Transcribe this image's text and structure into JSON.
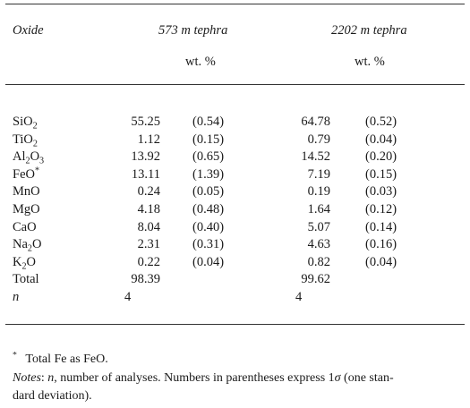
{
  "header": {
    "col_oxide": "Oxide",
    "col_a_title": "573 m tephra",
    "col_b_title": "2202 m tephra",
    "units_a": "wt. %",
    "units_b": "wt. %"
  },
  "rows": [
    {
      "oxide": "SiO",
      "sub": "2",
      "sup": "",
      "a": "55.25",
      "a_sd": "(0.54)",
      "b": "64.78",
      "b_sd": "(0.52)"
    },
    {
      "oxide": "TiO",
      "sub": "2",
      "sup": "",
      "a": "1.12",
      "a_sd": "(0.15)",
      "b": "0.79",
      "b_sd": "(0.04)"
    },
    {
      "oxide": "Al",
      "sub": "2",
      "oxide2": "O",
      "sub2": "3",
      "sup": "",
      "a": "13.92",
      "a_sd": "(0.65)",
      "b": "14.52",
      "b_sd": "(0.20)"
    },
    {
      "oxide": "FeO",
      "sub": "",
      "sup": "*",
      "a": "13.11",
      "a_sd": "(1.39)",
      "b": "7.19",
      "b_sd": "(0.15)"
    },
    {
      "oxide": "MnO",
      "sub": "",
      "sup": "",
      "a": "0.24",
      "a_sd": "(0.05)",
      "b": "0.19",
      "b_sd": "(0.03)"
    },
    {
      "oxide": "MgO",
      "sub": "",
      "sup": "",
      "a": "4.18",
      "a_sd": "(0.48)",
      "b": "1.64",
      "b_sd": "(0.12)"
    },
    {
      "oxide": "CaO",
      "sub": "",
      "sup": "",
      "a": "8.04",
      "a_sd": "(0.40)",
      "b": "5.07",
      "b_sd": "(0.14)"
    },
    {
      "oxide": "Na",
      "sub": "2",
      "oxide2": "O",
      "sup": "",
      "a": "2.31",
      "a_sd": "(0.31)",
      "b": "4.63",
      "b_sd": "(0.16)"
    },
    {
      "oxide": "K",
      "sub": "2",
      "oxide2": "O",
      "sup": "",
      "a": "0.22",
      "a_sd": "(0.04)",
      "b": "0.82",
      "b_sd": "(0.04)"
    },
    {
      "oxide": "Total",
      "sub": "",
      "sup": "",
      "a": "98.39",
      "a_sd": "",
      "b": "99.62",
      "b_sd": ""
    },
    {
      "oxide": "n",
      "italic": true,
      "sub": "",
      "sup": "",
      "a": "4",
      "a_sd": "",
      "b": "4",
      "b_sd": "",
      "left_align": true
    }
  ],
  "footnotes": {
    "star_mark": "*",
    "star_text": "Total Fe as FeO.",
    "notes_label": "Notes",
    "notes_colon": ":",
    "notes_n": "n",
    "notes_text_1": ", number of analyses. Numbers in parentheses express 1",
    "notes_sigma": "σ",
    "notes_text_2": " (one stan-",
    "notes_text_3": "dard deviation)."
  }
}
